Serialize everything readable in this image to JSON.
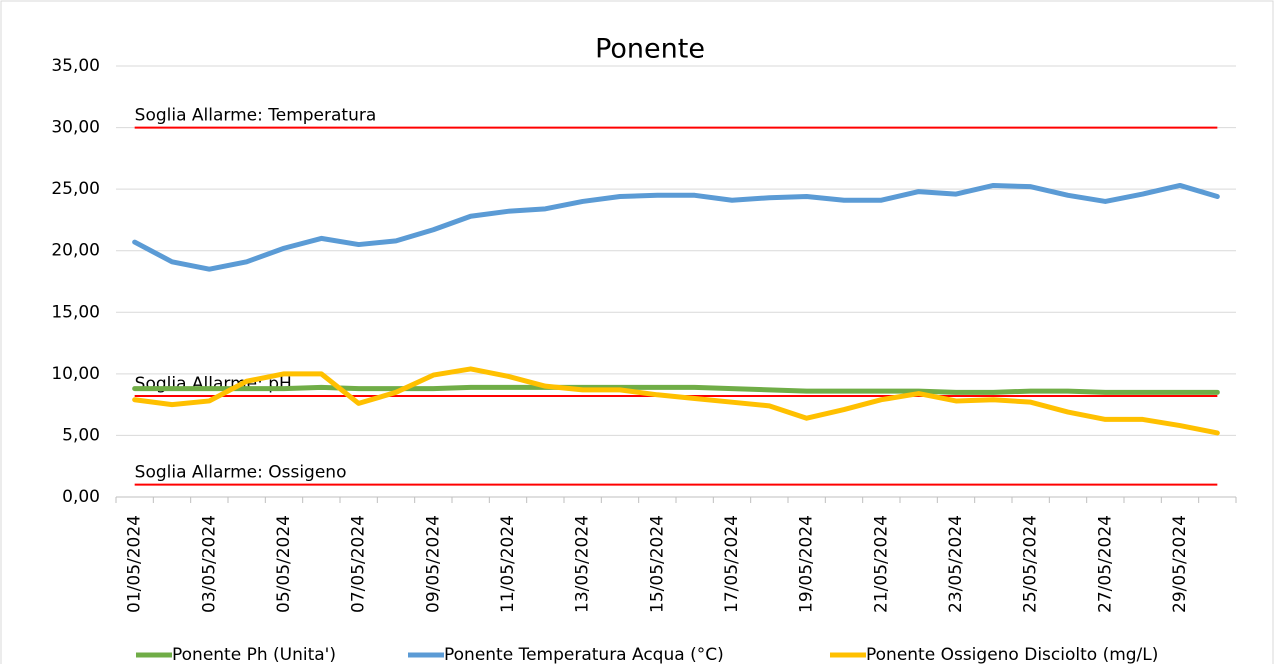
{
  "chart_data": {
    "type": "line",
    "title": "Ponente",
    "categories": [
      "01/05/2024",
      null,
      "03/05/2024",
      null,
      "05/05/2024",
      null,
      "07/05/2024",
      null,
      "09/05/2024",
      null,
      "11/05/2024",
      null,
      "13/05/2024",
      null,
      "15/05/2024",
      null,
      "17/05/2024",
      null,
      "19/05/2024",
      null,
      "21/05/2024",
      null,
      "23/05/2024",
      null,
      "25/05/2024",
      null,
      "27/05/2024",
      null,
      "29/05/2024",
      null
    ],
    "series": [
      {
        "name": "Ponente Ph (Unita')",
        "color": "#70ad47",
        "values": [
          8.8,
          8.8,
          8.8,
          8.8,
          8.8,
          8.9,
          8.8,
          8.8,
          8.8,
          8.9,
          8.9,
          8.9,
          8.9,
          8.9,
          8.9,
          8.9,
          8.8,
          8.7,
          8.6,
          8.6,
          8.6,
          8.6,
          8.5,
          8.5,
          8.6,
          8.6,
          8.5,
          8.5,
          8.5,
          8.5
        ]
      },
      {
        "name": "Ponente Temperatura Acqua (°C)",
        "color": "#5b9bd5",
        "values": [
          20.7,
          19.1,
          18.5,
          19.1,
          20.2,
          21.0,
          20.5,
          20.8,
          21.7,
          22.8,
          23.2,
          23.4,
          24.0,
          24.4,
          24.5,
          24.5,
          24.1,
          24.3,
          24.4,
          24.1,
          24.1,
          24.8,
          24.6,
          25.3,
          25.2,
          24.5,
          24.0,
          24.6,
          25.3,
          24.4
        ]
      },
      {
        "name": "Ponente Ossigeno Disciolto (mg/L)",
        "color": "#ffc000",
        "values": [
          7.9,
          7.5,
          7.8,
          9.4,
          10.0,
          10.0,
          7.6,
          8.5,
          9.9,
          10.4,
          9.8,
          9.0,
          8.7,
          8.7,
          8.3,
          8.0,
          7.7,
          7.4,
          6.4,
          7.1,
          7.9,
          8.4,
          7.8,
          7.9,
          7.7,
          6.9,
          6.3,
          6.3,
          5.8,
          5.2
        ]
      }
    ],
    "thresholds": [
      {
        "label": "Soglia Allarme: Temperatura",
        "value": 30,
        "color": "#ff0000"
      },
      {
        "label": "Soglia Allarme: pH",
        "value": 8.2,
        "color": "#ff0000"
      },
      {
        "label": "Soglia Allarme: Ossigeno",
        "value": 1,
        "color": "#ff0000"
      }
    ],
    "ylim": [
      0,
      35
    ],
    "yticks": [
      {
        "value": 0,
        "label": "0,00"
      },
      {
        "value": 5,
        "label": "5,00"
      },
      {
        "value": 10,
        "label": "10,00"
      },
      {
        "value": 15,
        "label": "15,00"
      },
      {
        "value": 20,
        "label": "20,00"
      },
      {
        "value": 25,
        "label": "25,00"
      },
      {
        "value": 30,
        "label": "30,00"
      },
      {
        "value": 35,
        "label": "35,00"
      }
    ],
    "grid": true,
    "legend": "bottom"
  }
}
